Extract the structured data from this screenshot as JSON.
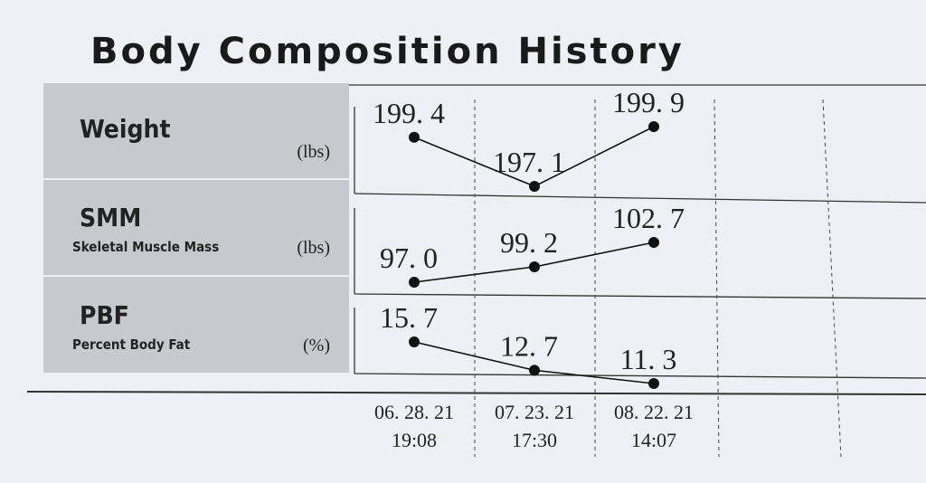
{
  "header": {
    "title": "Body Composition History"
  },
  "rows": [
    {
      "label": "Weight",
      "unit": "(lbs)",
      "values": [
        199.4,
        197.1,
        199.9
      ],
      "value_labels": [
        "199. 4",
        "197. 1",
        "199. 9"
      ]
    },
    {
      "label": "SMM",
      "sublabel": "Skeletal Muscle Mass",
      "unit": "(lbs)",
      "values": [
        97.0,
        99.2,
        102.7
      ],
      "value_labels": [
        "97. 0",
        "99. 2",
        "102. 7"
      ]
    },
    {
      "label": "PBF",
      "sublabel": "Percent Body Fat",
      "unit": "(%)",
      "values": [
        15.7,
        12.7,
        11.3
      ],
      "value_labels": [
        "15. 7",
        "12. 7",
        "11. 3"
      ]
    }
  ],
  "dates": [
    {
      "date": "06. 28. 21",
      "time": "19:08"
    },
    {
      "date": "07. 23. 21",
      "time": "17:30"
    },
    {
      "date": "08. 22. 21",
      "time": "14:07"
    }
  ]
}
